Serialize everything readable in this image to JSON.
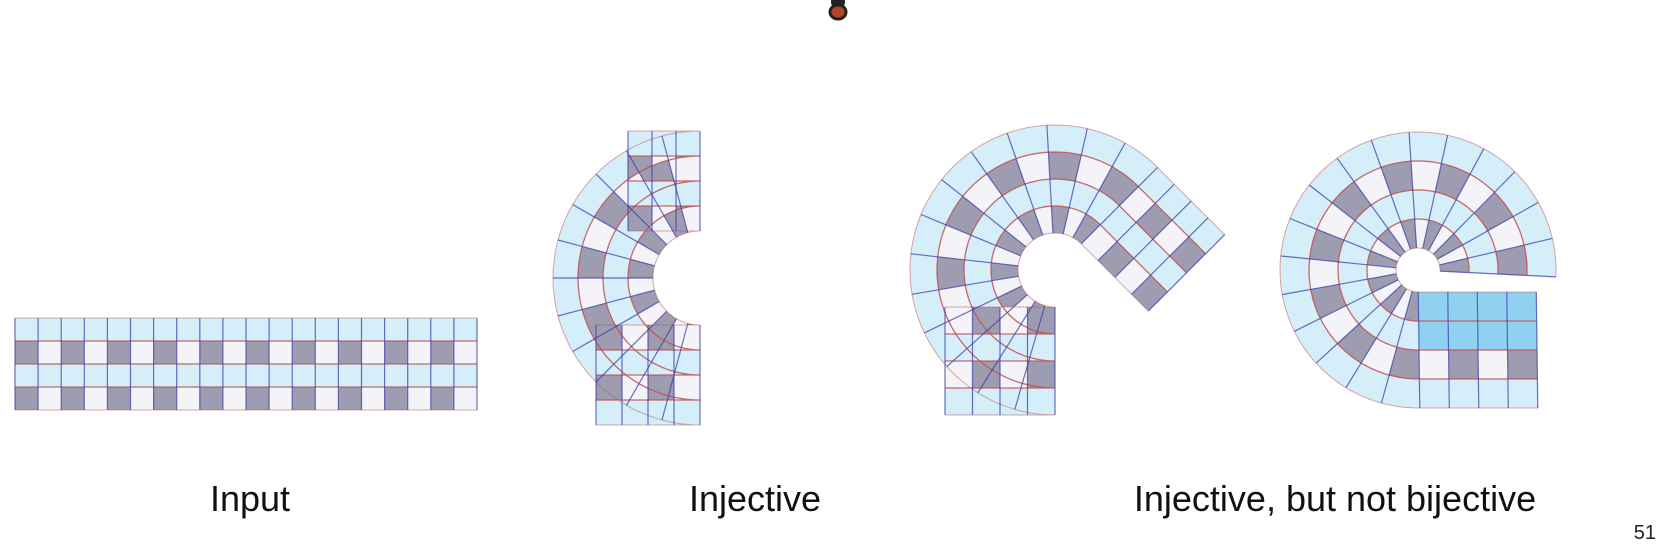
{
  "captions": {
    "input": "Input",
    "injective": "Injective",
    "not_bijective": "Injective, but not bijective"
  },
  "page_number": "51",
  "colors": {
    "cell_light": "#d4eefa",
    "cell_white": "#f3f3f8",
    "cell_dark": "#9e9cb0",
    "line_red": "#c0504f",
    "line_blue": "#3d3fa6",
    "overlap": "#7dc8ef",
    "dot_fill": "#b4442a"
  },
  "icons": {
    "top_marker": "pointer-dot-icon"
  }
}
